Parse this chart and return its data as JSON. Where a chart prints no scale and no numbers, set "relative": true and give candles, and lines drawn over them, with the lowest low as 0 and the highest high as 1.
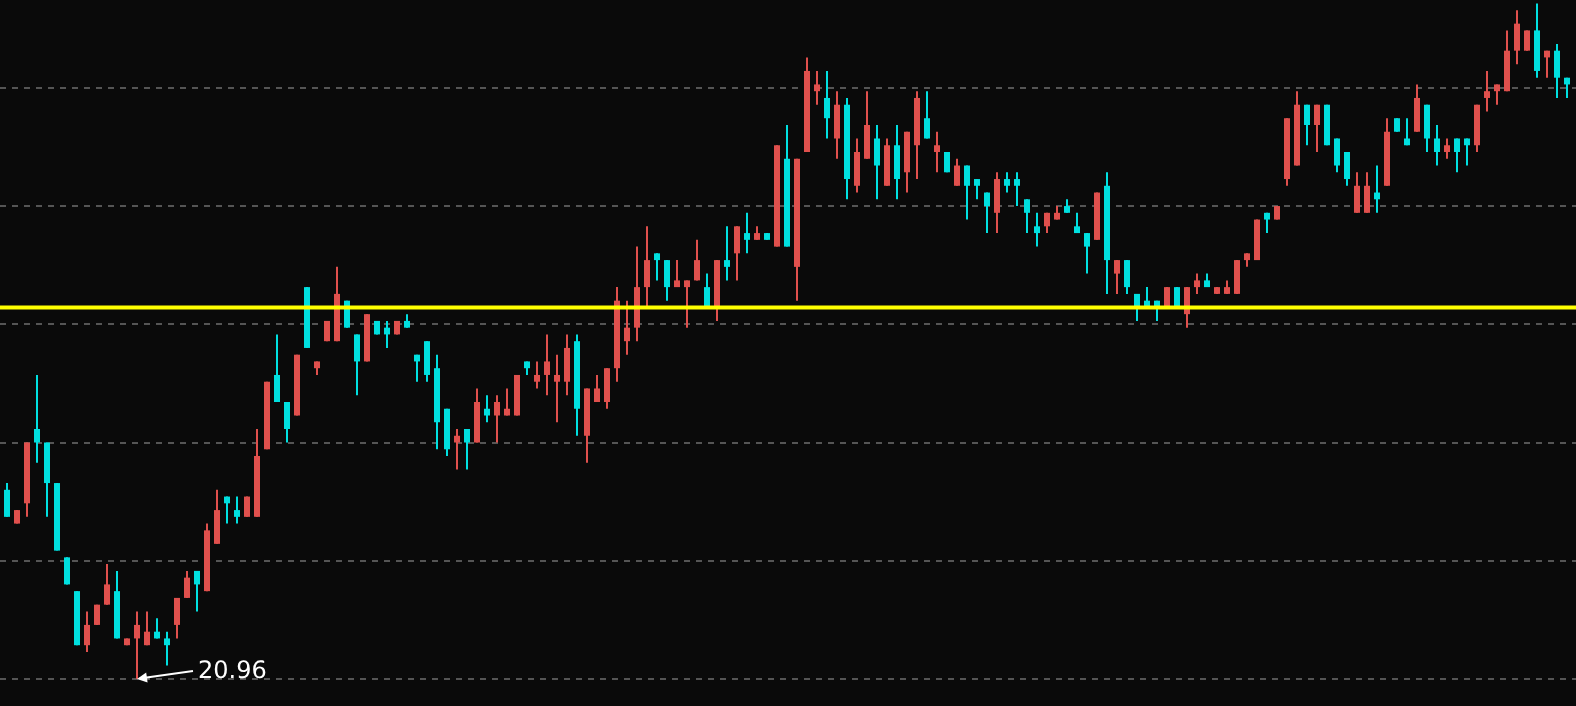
{
  "chart_data": {
    "type": "candlestick",
    "relative": true,
    "categories": [
      null,
      null,
      null,
      null,
      null,
      null,
      null,
      null,
      null,
      null,
      null,
      null,
      null,
      null,
      null,
      null,
      null,
      null,
      null,
      null,
      null,
      null,
      null,
      null,
      null,
      null,
      null,
      null,
      null,
      null,
      null,
      null,
      null,
      null,
      null,
      null,
      null,
      null,
      null,
      null,
      null,
      null,
      null,
      null,
      null,
      null,
      null,
      null,
      null,
      null,
      null,
      null,
      null,
      null,
      null,
      null,
      null,
      null,
      null,
      null,
      null,
      null,
      null,
      null,
      null,
      null,
      null,
      null,
      null,
      null,
      null,
      null,
      null,
      null,
      null,
      null,
      null,
      null,
      null,
      null,
      null,
      null,
      null,
      null,
      null,
      null,
      null,
      null,
      null,
      null,
      null,
      null,
      null,
      null,
      null,
      null,
      null,
      null,
      null,
      null,
      null,
      null,
      null,
      null,
      null,
      null,
      null,
      null,
      null,
      null,
      null,
      null,
      null,
      null,
      null,
      null,
      null,
      null,
      null,
      null,
      null,
      null,
      null,
      null,
      null,
      null,
      null,
      null,
      null,
      null,
      null,
      null,
      null,
      null,
      null,
      null,
      null,
      null,
      null,
      null,
      null,
      null,
      null,
      null,
      null,
      null,
      null,
      null,
      null,
      null,
      null,
      null,
      null,
      null,
      null,
      null,
      null
    ],
    "ohlc": [
      [
        0.28,
        0.29,
        0.24,
        0.24
      ],
      [
        0.23,
        0.25,
        0.23,
        0.25
      ],
      [
        0.26,
        0.35,
        0.24,
        0.35
      ],
      [
        0.37,
        0.45,
        0.32,
        0.35
      ],
      [
        0.35,
        0.35,
        0.24,
        0.29
      ],
      [
        0.29,
        0.29,
        0.19,
        0.19
      ],
      [
        0.18,
        0.18,
        0.14,
        0.14
      ],
      [
        0.13,
        0.13,
        0.05,
        0.05
      ],
      [
        0.05,
        0.1,
        0.04,
        0.08
      ],
      [
        0.08,
        0.11,
        0.08,
        0.11
      ],
      [
        0.11,
        0.17,
        0.11,
        0.14
      ],
      [
        0.13,
        0.16,
        0.06,
        0.06
      ],
      [
        0.05,
        0.06,
        0.05,
        0.06
      ],
      [
        0.06,
        0.1,
        0,
        0.08
      ],
      [
        0.05,
        0.1,
        0.05,
        0.07
      ],
      [
        0.07,
        0.09,
        0.06,
        0.06
      ],
      [
        0.06,
        0.07,
        0.02,
        0.05
      ],
      [
        0.08,
        0.12,
        0.06,
        0.12
      ],
      [
        0.12,
        0.16,
        0.12,
        0.15
      ],
      [
        0.16,
        0.16,
        0.1,
        0.14
      ],
      [
        0.13,
        0.23,
        0.13,
        0.22
      ],
      [
        0.2,
        0.28,
        0.2,
        0.25
      ],
      [
        0.27,
        0.27,
        0.23,
        0.26
      ],
      [
        0.25,
        0.27,
        0.23,
        0.24
      ],
      [
        0.24,
        0.27,
        0.24,
        0.27
      ],
      [
        0.24,
        0.37,
        0.24,
        0.33
      ],
      [
        0.34,
        0.44,
        0.34,
        0.44
      ],
      [
        0.45,
        0.51,
        0.41,
        0.41
      ],
      [
        0.41,
        0.41,
        0.35,
        0.37
      ],
      [
        0.39,
        0.48,
        0.39,
        0.48
      ],
      [
        0.58,
        0.58,
        0.49,
        0.49
      ],
      [
        0.46,
        0.47,
        0.45,
        0.47
      ],
      [
        0.5,
        0.53,
        0.5,
        0.53
      ],
      [
        0.5,
        0.61,
        0.5,
        0.57
      ],
      [
        0.56,
        0.56,
        0.52,
        0.52
      ],
      [
        0.51,
        0.51,
        0.42,
        0.47
      ],
      [
        0.47,
        0.54,
        0.47,
        0.54
      ],
      [
        0.53,
        0.53,
        0.51,
        0.51
      ],
      [
        0.52,
        0.53,
        0.49,
        0.51
      ],
      [
        0.51,
        0.53,
        0.51,
        0.53
      ],
      [
        0.53,
        0.54,
        0.52,
        0.52
      ],
      [
        0.48,
        0.48,
        0.44,
        0.47
      ],
      [
        0.5,
        0.5,
        0.44,
        0.45
      ],
      [
        0.46,
        0.48,
        0.34,
        0.38
      ],
      [
        0.4,
        0.4,
        0.33,
        0.34
      ],
      [
        0.35,
        0.37,
        0.31,
        0.36
      ],
      [
        0.37,
        0.37,
        0.31,
        0.35
      ],
      [
        0.35,
        0.43,
        0.35,
        0.41
      ],
      [
        0.4,
        0.42,
        0.38,
        0.39
      ],
      [
        0.39,
        0.42,
        0.35,
        0.41
      ],
      [
        0.39,
        0.43,
        0.39,
        0.4
      ],
      [
        0.39,
        0.45,
        0.39,
        0.45
      ],
      [
        0.47,
        0.47,
        0.45,
        0.46
      ],
      [
        0.44,
        0.47,
        0.43,
        0.45
      ],
      [
        0.45,
        0.51,
        0.42,
        0.47
      ],
      [
        0.44,
        0.48,
        0.38,
        0.45
      ],
      [
        0.44,
        0.51,
        0.42,
        0.49
      ],
      [
        0.5,
        0.51,
        0.36,
        0.4
      ],
      [
        0.36,
        0.43,
        0.32,
        0.43
      ],
      [
        0.41,
        0.45,
        0.41,
        0.43
      ],
      [
        0.41,
        0.46,
        0.4,
        0.46
      ],
      [
        0.46,
        0.58,
        0.44,
        0.56
      ],
      [
        0.5,
        0.56,
        0.48,
        0.52
      ],
      [
        0.52,
        0.64,
        0.5,
        0.58
      ],
      [
        0.58,
        0.67,
        0.55,
        0.62
      ],
      [
        0.63,
        0.63,
        0.59,
        0.62
      ],
      [
        0.62,
        0.62,
        0.56,
        0.58
      ],
      [
        0.58,
        0.62,
        0.58,
        0.59
      ],
      [
        0.58,
        0.59,
        0.52,
        0.59
      ],
      [
        0.59,
        0.65,
        0.59,
        0.62
      ],
      [
        0.58,
        0.6,
        0.55,
        0.55
      ],
      [
        0.55,
        0.62,
        0.53,
        0.62
      ],
      [
        0.62,
        0.67,
        0.59,
        0.61
      ],
      [
        0.63,
        0.67,
        0.59,
        0.67
      ],
      [
        0.66,
        0.69,
        0.63,
        0.65
      ],
      [
        0.65,
        0.67,
        0.65,
        0.66
      ],
      [
        0.66,
        0.66,
        0.65,
        0.65
      ],
      [
        0.64,
        0.79,
        0.64,
        0.79
      ],
      [
        0.77,
        0.82,
        0.64,
        0.64
      ],
      [
        0.61,
        0.77,
        0.56,
        0.77
      ],
      [
        0.78,
        0.92,
        0.78,
        0.9
      ],
      [
        0.87,
        0.9,
        0.85,
        0.88
      ],
      [
        0.86,
        0.9,
        0.8,
        0.83
      ],
      [
        0.8,
        0.87,
        0.77,
        0.85
      ],
      [
        0.85,
        0.86,
        0.71,
        0.74
      ],
      [
        0.73,
        0.8,
        0.72,
        0.78
      ],
      [
        0.77,
        0.87,
        0.77,
        0.82
      ],
      [
        0.8,
        0.82,
        0.71,
        0.76
      ],
      [
        0.73,
        0.8,
        0.73,
        0.79
      ],
      [
        0.79,
        0.82,
        0.71,
        0.74
      ],
      [
        0.75,
        0.81,
        0.72,
        0.81
      ],
      [
        0.79,
        0.87,
        0.74,
        0.86
      ],
      [
        0.83,
        0.87,
        0.8,
        0.8
      ],
      [
        0.78,
        0.81,
        0.75,
        0.79
      ],
      [
        0.78,
        0.78,
        0.75,
        0.75
      ],
      [
        0.73,
        0.77,
        0.73,
        0.76
      ],
      [
        0.76,
        0.76,
        0.68,
        0.73
      ],
      [
        0.74,
        0.74,
        0.71,
        0.73
      ],
      [
        0.72,
        0.72,
        0.66,
        0.7
      ],
      [
        0.69,
        0.75,
        0.66,
        0.74
      ],
      [
        0.74,
        0.75,
        0.72,
        0.73
      ],
      [
        0.74,
        0.75,
        0.7,
        0.73
      ],
      [
        0.71,
        0.71,
        0.66,
        0.69
      ],
      [
        0.67,
        0.69,
        0.64,
        0.66
      ],
      [
        0.67,
        0.69,
        0.66,
        0.69
      ],
      [
        0.68,
        0.7,
        0.68,
        0.69
      ],
      [
        0.7,
        0.71,
        0.69,
        0.69
      ],
      [
        0.67,
        0.69,
        0.66,
        0.66
      ],
      [
        0.66,
        0.66,
        0.6,
        0.64
      ],
      [
        0.65,
        0.72,
        0.65,
        0.72
      ],
      [
        0.73,
        0.75,
        0.57,
        0.62
      ],
      [
        0.6,
        0.62,
        0.57,
        0.62
      ],
      [
        0.62,
        0.62,
        0.57,
        0.58
      ],
      [
        0.57,
        0.57,
        0.53,
        0.55
      ],
      [
        0.56,
        0.58,
        0.55,
        0.55
      ],
      [
        0.56,
        0.56,
        0.53,
        0.55
      ],
      [
        0.55,
        0.58,
        0.55,
        0.58
      ],
      [
        0.58,
        0.58,
        0.55,
        0.55
      ],
      [
        0.54,
        0.58,
        0.52,
        0.58
      ],
      [
        0.58,
        0.6,
        0.57,
        0.59
      ],
      [
        0.59,
        0.6,
        0.58,
        0.58
      ],
      [
        0.57,
        0.58,
        0.57,
        0.58
      ],
      [
        0.57,
        0.59,
        0.57,
        0.58
      ],
      [
        0.57,
        0.62,
        0.57,
        0.62
      ],
      [
        0.62,
        0.63,
        0.61,
        0.63
      ],
      [
        0.62,
        0.68,
        0.62,
        0.68
      ],
      [
        0.69,
        0.69,
        0.66,
        0.68
      ],
      [
        0.68,
        0.7,
        0.68,
        0.7
      ],
      [
        0.74,
        0.83,
        0.73,
        0.83
      ],
      [
        0.76,
        0.87,
        0.76,
        0.85
      ],
      [
        0.85,
        0.85,
        0.79,
        0.82
      ],
      [
        0.82,
        0.85,
        0.78,
        0.85
      ],
      [
        0.85,
        0.85,
        0.79,
        0.79
      ],
      [
        0.8,
        0.8,
        0.75,
        0.76
      ],
      [
        0.78,
        0.78,
        0.73,
        0.74
      ],
      [
        0.69,
        0.75,
        0.69,
        0.73
      ],
      [
        0.69,
        0.75,
        0.69,
        0.73
      ],
      [
        0.72,
        0.76,
        0.69,
        0.71
      ],
      [
        0.73,
        0.83,
        0.73,
        0.81
      ],
      [
        0.83,
        0.83,
        0.81,
        0.81
      ],
      [
        0.8,
        0.83,
        0.79,
        0.79
      ],
      [
        0.81,
        0.88,
        0.81,
        0.86
      ],
      [
        0.85,
        0.85,
        0.78,
        0.8
      ],
      [
        0.8,
        0.82,
        0.76,
        0.78
      ],
      [
        0.78,
        0.8,
        0.77,
        0.79
      ],
      [
        0.8,
        0.8,
        0.75,
        0.78
      ],
      [
        0.8,
        0.8,
        0.76,
        0.79
      ],
      [
        0.79,
        0.85,
        0.78,
        0.85
      ],
      [
        0.86,
        0.9,
        0.84,
        0.87
      ],
      [
        0.87,
        0.88,
        0.85,
        0.88
      ],
      [
        0.87,
        0.96,
        0.87,
        0.93
      ],
      [
        0.93,
        0.99,
        0.91,
        0.97
      ],
      [
        0.93,
        0.96,
        0.93,
        0.96
      ],
      [
        0.96,
        1.0,
        0.89,
        0.9
      ],
      [
        0.92,
        0.93,
        0.89,
        0.93
      ],
      [
        0.93,
        0.94,
        0.86,
        0.89
      ],
      [
        0.89,
        0.89,
        0.86,
        0.88
      ]
    ],
    "colors": [
      "#00e0e0",
      "#e0504d",
      "#e0504d",
      "#00e0e0",
      "#00e0e0",
      "#00e0e0",
      "#00e0e0",
      "#00e0e0",
      "#e0504d",
      "#e0504d",
      "#e0504d",
      "#00e0e0",
      "#e0504d",
      "#e0504d",
      "#e0504d",
      "#00e0e0",
      "#00e0e0",
      "#e0504d",
      "#e0504d",
      "#00e0e0",
      "#e0504d",
      "#e0504d",
      "#00e0e0",
      "#00e0e0",
      "#e0504d",
      "#e0504d",
      "#e0504d",
      "#00e0e0",
      "#00e0e0",
      "#e0504d",
      "#00e0e0",
      "#e0504d",
      "#e0504d",
      "#e0504d",
      "#00e0e0",
      "#00e0e0",
      "#e0504d",
      "#00e0e0",
      "#00e0e0",
      "#e0504d",
      "#00e0e0",
      "#00e0e0",
      "#00e0e0",
      "#00e0e0",
      "#00e0e0",
      "#e0504d",
      "#00e0e0",
      "#e0504d",
      "#00e0e0",
      "#e0504d",
      "#e0504d",
      "#e0504d",
      "#00e0e0",
      "#e0504d",
      "#e0504d",
      "#e0504d",
      "#e0504d",
      "#00e0e0",
      "#e0504d",
      "#e0504d",
      "#e0504d",
      "#e0504d",
      "#e0504d",
      "#e0504d",
      "#e0504d",
      "#00e0e0",
      "#00e0e0",
      "#e0504d",
      "#e0504d",
      "#e0504d",
      "#00e0e0",
      "#e0504d",
      "#00e0e0",
      "#e0504d",
      "#00e0e0",
      "#e0504d",
      "#00e0e0",
      "#e0504d",
      "#00e0e0",
      "#e0504d",
      "#e0504d",
      "#e0504d",
      "#00e0e0",
      "#e0504d",
      "#00e0e0",
      "#e0504d",
      "#e0504d",
      "#00e0e0",
      "#e0504d",
      "#00e0e0",
      "#e0504d",
      "#e0504d",
      "#00e0e0",
      "#e0504d",
      "#00e0e0",
      "#e0504d",
      "#00e0e0",
      "#00e0e0",
      "#00e0e0",
      "#e0504d",
      "#00e0e0",
      "#00e0e0",
      "#00e0e0",
      "#00e0e0",
      "#e0504d",
      "#e0504d",
      "#00e0e0",
      "#00e0e0",
      "#00e0e0",
      "#e0504d",
      "#00e0e0",
      "#e0504d",
      "#00e0e0",
      "#00e0e0",
      "#00e0e0",
      "#00e0e0",
      "#e0504d",
      "#00e0e0",
      "#e0504d",
      "#e0504d",
      "#00e0e0",
      "#e0504d",
      "#e0504d",
      "#e0504d",
      "#e0504d",
      "#e0504d",
      "#00e0e0",
      "#e0504d",
      "#e0504d",
      "#e0504d",
      "#00e0e0",
      "#e0504d",
      "#00e0e0",
      "#00e0e0",
      "#00e0e0",
      "#e0504d",
      "#e0504d",
      "#00e0e0",
      "#e0504d",
      "#00e0e0",
      "#00e0e0",
      "#e0504d",
      "#00e0e0",
      "#00e0e0",
      "#e0504d",
      "#00e0e0",
      "#00e0e0",
      "#e0504d",
      "#e0504d",
      "#e0504d",
      "#e0504d",
      "#e0504d",
      "#e0504d",
      "#00e0e0",
      "#e0504d",
      "#00e0e0",
      "#00e0e0"
    ],
    "ref_lines": [
      {
        "axis": "y",
        "value": 0.55,
        "color": "#ffff00",
        "line_style": "solid"
      }
    ],
    "annotations": [
      "20.96"
    ],
    "grid": "y",
    "legend": false,
    "tick_labels": false
  }
}
